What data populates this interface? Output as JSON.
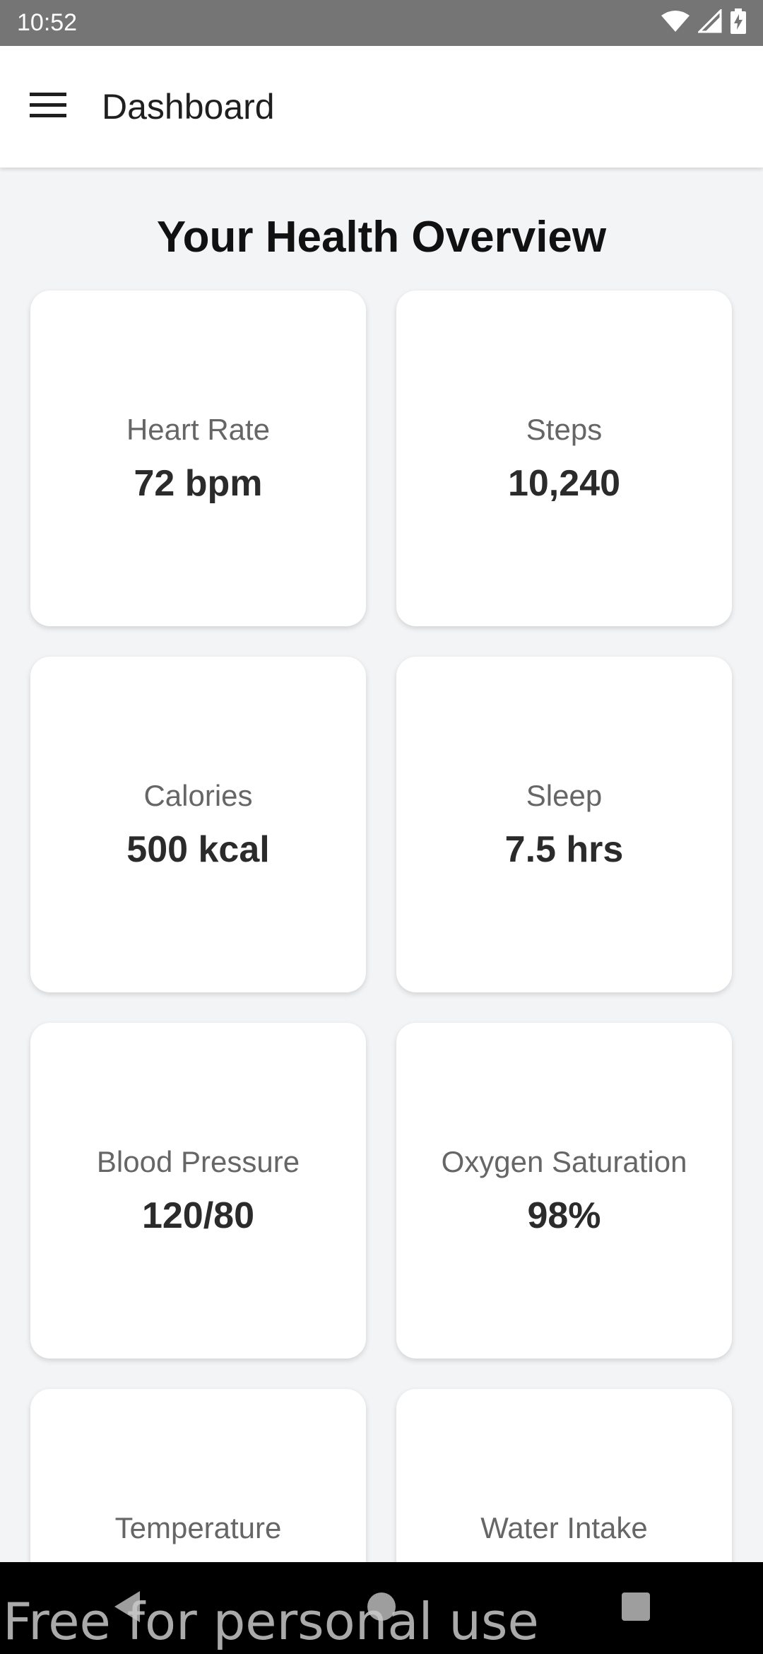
{
  "status_bar": {
    "time": "10:52",
    "icons": [
      "wifi-icon",
      "signal-icon",
      "battery-charging-icon"
    ]
  },
  "app_bar": {
    "menu_icon": "menu-icon",
    "title": "Dashboard"
  },
  "main": {
    "heading": "Your Health Overview",
    "cards": [
      {
        "label": "Heart Rate",
        "value": "72 bpm"
      },
      {
        "label": "Steps",
        "value": "10,240"
      },
      {
        "label": "Calories",
        "value": "500 kcal"
      },
      {
        "label": "Sleep",
        "value": "7.5 hrs"
      },
      {
        "label": "Blood Pressure",
        "value": "120/80"
      },
      {
        "label": "Oxygen Saturation",
        "value": "98%"
      },
      {
        "label": "Temperature",
        "value": ""
      },
      {
        "label": "Water Intake",
        "value": ""
      }
    ]
  },
  "nav_bar": {
    "buttons": [
      "back-icon",
      "home-icon",
      "recents-icon"
    ]
  },
  "watermark": "Free for personal use"
}
